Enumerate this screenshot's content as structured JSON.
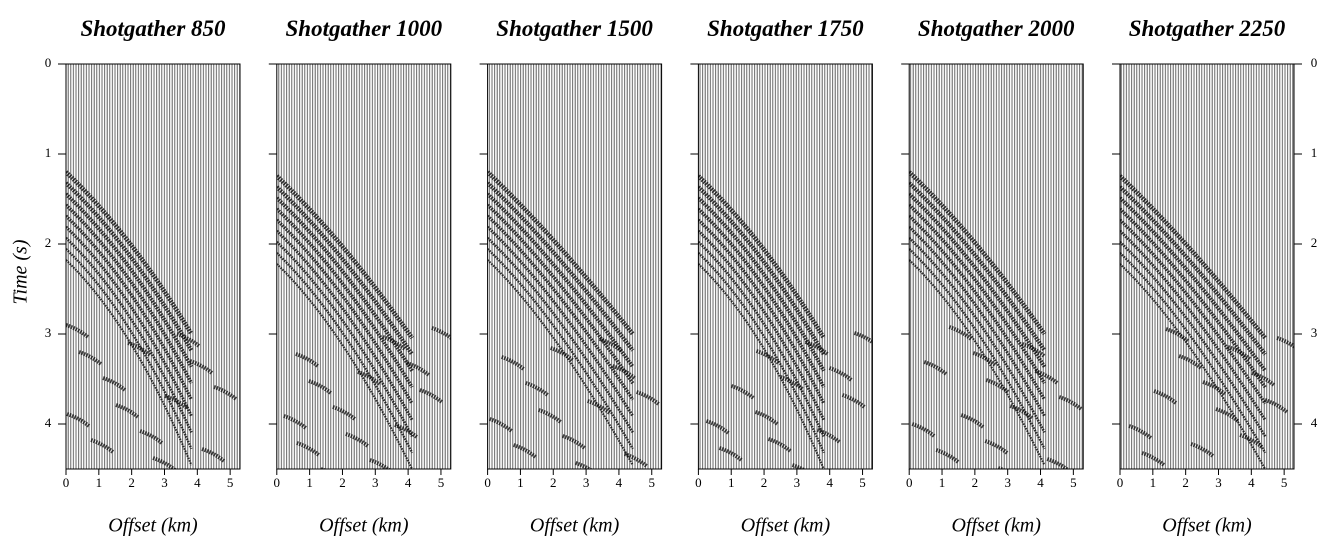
{
  "figure": {
    "panels": [
      {
        "title": "Shotgather 850"
      },
      {
        "title": "Shotgather 1000"
      },
      {
        "title": "Shotgather 1500"
      },
      {
        "title": "Shotgather 1750"
      },
      {
        "title": "Shotgather 2000"
      },
      {
        "title": "Shotgather 2250"
      }
    ],
    "x_label": "Offset (km)",
    "y_label": "Time (s)",
    "xlim": [
      0,
      5.3
    ],
    "xticks": [
      0,
      1,
      2,
      3,
      4,
      5
    ],
    "ylim": [
      0,
      4.5
    ],
    "yticks": [
      0,
      1,
      2,
      3,
      4
    ]
  }
}
